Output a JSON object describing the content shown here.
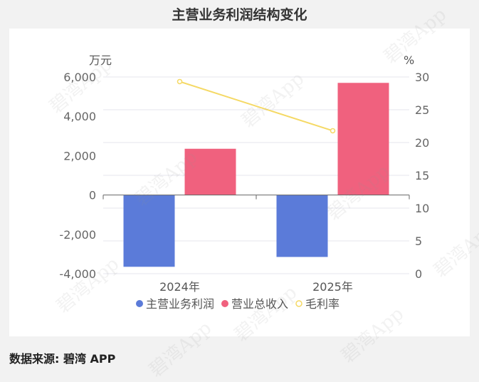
{
  "title": "主营业务利润结构变化",
  "source": "数据来源: 碧湾 APP",
  "watermark": "碧湾App",
  "chart_data": {
    "type": "bar",
    "title": "主营业务利润结构变化",
    "categories": [
      "2024年",
      "2025年"
    ],
    "y_left": {
      "unit": "万元",
      "ylim": [
        -4000,
        6000
      ],
      "ticks": [
        -4000,
        -2000,
        0,
        2000,
        4000,
        6000
      ],
      "tick_labels": [
        "-4,000",
        "-2,000",
        "0",
        "2,000",
        "4,000",
        "6,000"
      ]
    },
    "y_right": {
      "unit": "%",
      "ylim": [
        0,
        30
      ],
      "ticks": [
        0,
        5,
        10,
        15,
        20,
        25,
        30
      ],
      "tick_labels": [
        "0",
        "5",
        "10",
        "15",
        "20",
        "25",
        "30"
      ]
    },
    "series": [
      {
        "name": "主营业务利润",
        "type": "bar",
        "axis": "left",
        "color": "#5b7bd9",
        "values": [
          -3650,
          -3150
        ]
      },
      {
        "name": "营业总收入",
        "type": "bar",
        "axis": "left",
        "color": "#f0617e",
        "values": [
          2350,
          5700
        ]
      },
      {
        "name": "毛利率",
        "type": "line",
        "axis": "right",
        "color": "#f5d965",
        "values": [
          29.3,
          21.8
        ]
      }
    ],
    "legend_position": "bottom",
    "grid": true
  }
}
